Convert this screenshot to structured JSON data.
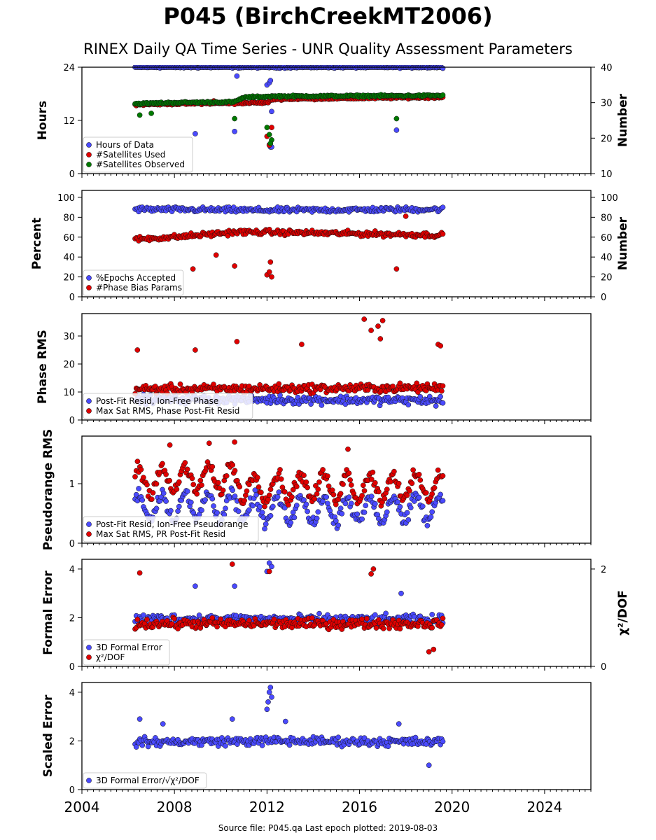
{
  "title": "P045 (BirchCreekMT2006)",
  "subtitle": "RINEX Daily QA Time Series - UNR Quality Assessment Parameters",
  "footer": "Source file: P045.qa Last epoch plotted: 2019-08-03",
  "chart_data": [
    {
      "type": "scatter",
      "x_range": [
        2004,
        2026
      ],
      "x_ticks": [
        2004,
        2008,
        2012,
        2016,
        2020,
        2024
      ],
      "ylabel_left": "Hours",
      "ylabel_right": "Number",
      "ylim_left": [
        0,
        24
      ],
      "ylim_right": [
        10,
        40
      ],
      "yticks_left": [
        0,
        12,
        24
      ],
      "yticks_right": [
        10,
        20,
        30,
        40
      ],
      "legend_position": "lower-left",
      "grid": false,
      "series": [
        {
          "name": "Hours of Data",
          "color": "#4a4aff",
          "axis": "left",
          "base": [
            [
              2006.3,
              24.0
            ],
            [
              2019.6,
              24.0
            ]
          ],
          "outliers": [
            [
              2008.9,
              9.0
            ],
            [
              2010.6,
              9.5
            ],
            [
              2010.7,
              22.0
            ],
            [
              2012.0,
              20.0
            ],
            [
              2012.1,
              20.5
            ],
            [
              2012.15,
              21.0
            ],
            [
              2012.2,
              14.0
            ],
            [
              2012.1,
              6.5
            ],
            [
              2012.15,
              6.0
            ],
            [
              2012.2,
              6.0
            ],
            [
              2017.6,
              9.8
            ]
          ]
        },
        {
          "name": "#Satellites Used",
          "color": "#e00000",
          "axis": "right",
          "base": [
            [
              2006.3,
              29.5
            ],
            [
              2012.0,
              30.0
            ],
            [
              2012.3,
              31.0
            ],
            [
              2019.6,
              31.5
            ]
          ],
          "outliers": [
            [
              2009.7,
              30.5
            ],
            [
              2010.6,
              29.5
            ],
            [
              2012.0,
              20.5
            ],
            [
              2012.1,
              18.0
            ],
            [
              2012.2,
              23.0
            ]
          ]
        },
        {
          "name": "#Satellites Observed",
          "color": "#007a00",
          "axis": "right",
          "base": [
            [
              2006.3,
              29.7
            ],
            [
              2008.0,
              30.0
            ],
            [
              2010.6,
              30.2
            ],
            [
              2011.0,
              31.5
            ],
            [
              2012.3,
              31.8
            ],
            [
              2019.6,
              32.0
            ]
          ],
          "outliers": [
            [
              2006.5,
              26.5
            ],
            [
              2007.0,
              27.0
            ],
            [
              2010.6,
              25.5
            ],
            [
              2012.0,
              23.0
            ],
            [
              2012.1,
              21.0
            ],
            [
              2012.2,
              19.5
            ],
            [
              2012.15,
              18.5
            ],
            [
              2017.6,
              25.5
            ]
          ]
        }
      ]
    },
    {
      "type": "scatter",
      "x_range": [
        2004,
        2026
      ],
      "x_ticks": [
        2004,
        2008,
        2012,
        2016,
        2020,
        2024
      ],
      "ylabel_left": "Percent",
      "ylabel_right": "Number",
      "ylim_left": [
        0,
        107
      ],
      "ylim_right": [
        0,
        107
      ],
      "yticks_left": [
        0,
        20,
        40,
        60,
        80,
        100
      ],
      "yticks_right": [
        0,
        20,
        40,
        60,
        80,
        100
      ],
      "legend_position": "lower-left",
      "grid": false,
      "series": [
        {
          "name": "%Epochs Accepted",
          "color": "#4a4aff",
          "axis": "left",
          "base": [
            [
              2006.3,
              88.0
            ],
            [
              2012.0,
              87.0
            ],
            [
              2019.6,
              88.0
            ]
          ],
          "outliers": []
        },
        {
          "name": "#Phase Bias Params",
          "color": "#e00000",
          "axis": "right",
          "base": [
            [
              2006.3,
              58.0
            ],
            [
              2008.0,
              60.0
            ],
            [
              2010.6,
              65.0
            ],
            [
              2012.0,
              65.0
            ],
            [
              2019.6,
              62.0
            ]
          ],
          "outliers": [
            [
              2008.8,
              28.0
            ],
            [
              2009.8,
              42.0
            ],
            [
              2010.6,
              31.0
            ],
            [
              2012.0,
              22.0
            ],
            [
              2012.1,
              25.0
            ],
            [
              2012.15,
              35.0
            ],
            [
              2012.2,
              20.0
            ],
            [
              2017.6,
              28.0
            ],
            [
              2018.0,
              81.0
            ]
          ]
        }
      ]
    },
    {
      "type": "scatter",
      "x_range": [
        2004,
        2026
      ],
      "x_ticks": [
        2004,
        2008,
        2012,
        2016,
        2020,
        2024
      ],
      "ylabel_left": "Phase RMS",
      "ylim_left": [
        0,
        38
      ],
      "yticks_left": [
        0,
        10,
        20,
        30
      ],
      "legend_position": "lower-left",
      "grid": false,
      "series": [
        {
          "name": "Post-Fit Resid, Ion-Free Phase",
          "color": "#4a4aff",
          "axis": "left",
          "base": [
            [
              2006.3,
              7.5
            ],
            [
              2019.6,
              7.0
            ]
          ],
          "outliers": [
            [
              2019.3,
              5.0
            ]
          ]
        },
        {
          "name": "Max Sat RMS, Phase Post-Fit Resid",
          "color": "#e00000",
          "axis": "left",
          "base": [
            [
              2006.3,
              11.0
            ],
            [
              2019.6,
              11.5
            ]
          ],
          "outliers": [
            [
              2006.4,
              25.0
            ],
            [
              2008.9,
              25.0
            ],
            [
              2010.7,
              28.0
            ],
            [
              2013.5,
              27.0
            ],
            [
              2016.2,
              36.0
            ],
            [
              2016.5,
              32.0
            ],
            [
              2016.8,
              33.5
            ],
            [
              2017.0,
              35.5
            ],
            [
              2016.9,
              29.0
            ],
            [
              2019.4,
              27.0
            ],
            [
              2019.5,
              26.5
            ]
          ]
        }
      ]
    },
    {
      "type": "scatter",
      "x_range": [
        2004,
        2026
      ],
      "x_ticks": [
        2004,
        2008,
        2012,
        2016,
        2020,
        2024
      ],
      "ylabel_left": "Pseudorange RMS",
      "ylim_left": [
        0,
        1.8
      ],
      "yticks_left": [
        0,
        1
      ],
      "legend_position": "lower-left",
      "grid": false,
      "series": [
        {
          "name": "Post-Fit Resid, Ion-Free Pseudorange",
          "color": "#4a4aff",
          "axis": "left",
          "base": [
            [
              2006.3,
              0.62
            ],
            [
              2010.6,
              0.62
            ],
            [
              2011.0,
              0.55
            ],
            [
              2019.6,
              0.58
            ]
          ],
          "outliers": []
        },
        {
          "name": "Max Sat RMS, PR Post-Fit Resid",
          "color": "#e00000",
          "axis": "left",
          "base": [
            [
              2006.3,
              1.05
            ],
            [
              2010.6,
              1.1
            ],
            [
              2011.0,
              0.95
            ],
            [
              2019.6,
              0.95
            ]
          ],
          "outliers": [
            [
              2007.8,
              1.65
            ],
            [
              2009.5,
              1.68
            ],
            [
              2010.6,
              1.7
            ],
            [
              2015.5,
              1.58
            ]
          ]
        }
      ]
    },
    {
      "type": "scatter",
      "x_range": [
        2004,
        2026
      ],
      "x_ticks": [
        2004,
        2008,
        2012,
        2016,
        2020,
        2024
      ],
      "ylabel_left": "Formal Error",
      "ylabel_right": "χ²/DOF",
      "ylim_left": [
        0,
        4.4
      ],
      "ylim_right": [
        0,
        2.2
      ],
      "yticks_left": [
        0,
        2,
        4
      ],
      "yticks_right": [
        0,
        2
      ],
      "legend_position": "lower-left",
      "grid": false,
      "series": [
        {
          "name": "3D Formal Error",
          "color": "#4a4aff",
          "axis": "left",
          "base": [
            [
              2006.3,
              1.95
            ],
            [
              2019.6,
              1.9
            ]
          ],
          "outliers": [
            [
              2008.9,
              3.3
            ],
            [
              2010.6,
              3.3
            ],
            [
              2012.0,
              3.9
            ],
            [
              2012.1,
              4.25
            ],
            [
              2012.2,
              4.1
            ],
            [
              2017.8,
              3.0
            ]
          ]
        },
        {
          "name": "χ²/DOF",
          "color": "#e00000",
          "axis": "right",
          "base": [
            [
              2006.3,
              0.88
            ],
            [
              2019.6,
              0.88
            ]
          ],
          "outliers": [
            [
              2006.5,
              1.92
            ],
            [
              2010.5,
              2.1
            ],
            [
              2012.1,
              1.95
            ],
            [
              2016.6,
              2.0
            ],
            [
              2016.5,
              1.9
            ],
            [
              2019.0,
              0.3
            ],
            [
              2019.2,
              0.35
            ]
          ]
        }
      ]
    },
    {
      "type": "scatter",
      "x_range": [
        2004,
        2026
      ],
      "x_ticks": [
        2004,
        2008,
        2012,
        2016,
        2020,
        2024
      ],
      "ylabel_left": "Scaled Error",
      "ylim_left": [
        0,
        4.4
      ],
      "yticks_left": [
        0,
        2,
        4
      ],
      "legend_position": "lower-left",
      "grid": false,
      "series": [
        {
          "name": "3D Formal Error/√χ²/DOF",
          "color": "#4a4aff",
          "axis": "left",
          "base": [
            [
              2006.3,
              1.95
            ],
            [
              2012.0,
              2.0
            ],
            [
              2019.6,
              1.95
            ]
          ],
          "outliers": [
            [
              2006.5,
              2.9
            ],
            [
              2007.5,
              2.7
            ],
            [
              2010.5,
              2.9
            ],
            [
              2012.0,
              3.3
            ],
            [
              2012.05,
              3.6
            ],
            [
              2012.1,
              4.0
            ],
            [
              2012.15,
              4.2
            ],
            [
              2012.2,
              3.8
            ],
            [
              2012.8,
              2.8
            ],
            [
              2017.7,
              2.7
            ],
            [
              2019.0,
              1.0
            ]
          ]
        }
      ]
    }
  ]
}
